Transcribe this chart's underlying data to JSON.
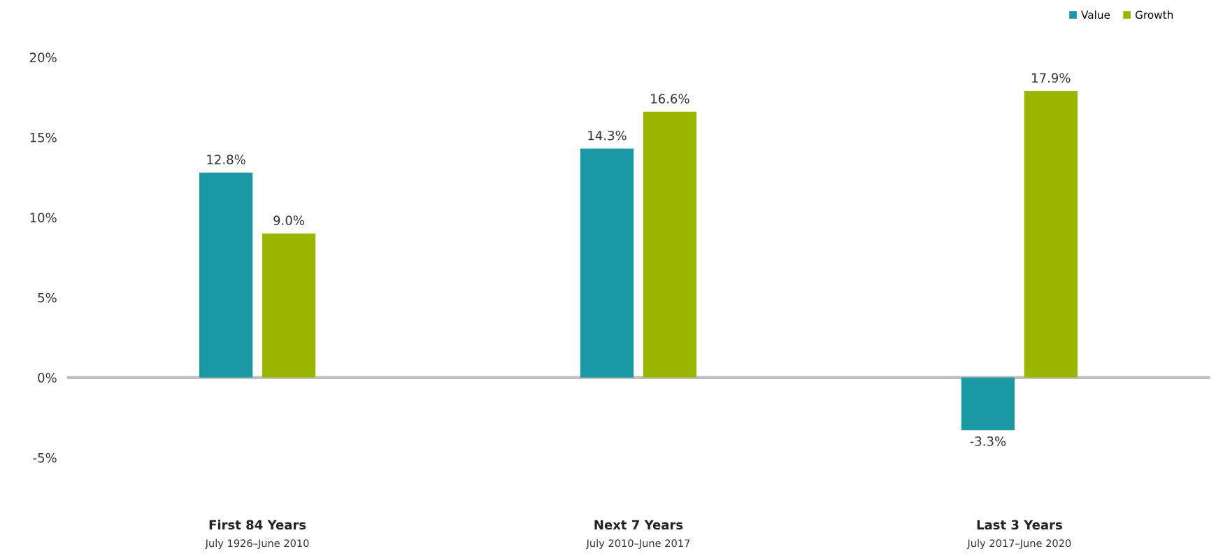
{
  "chart_data": {
    "type": "bar",
    "categories": [
      "First 84 Years\nJuly 1926–June 2010",
      "Next 7 Years\nJuly 2010–June 2017",
      "Last 3 Years\nJuly 2017–June 2020"
    ],
    "series": [
      {
        "name": "Value",
        "color": "#1a98a3",
        "values": [
          12.8,
          14.3,
          -3.3
        ],
        "value_labels": [
          "12.8%",
          "14.3%",
          "-3.3%"
        ]
      },
      {
        "name": "Growth",
        "color": "#9bb600",
        "values": [
          9.0,
          16.6,
          17.9
        ],
        "value_labels": [
          "9.0%",
          "16.6%",
          "17.9%"
        ]
      }
    ],
    "ylim": [
      -5,
      20
    ],
    "yticks": [
      {
        "value": -5,
        "label": "-5%"
      },
      {
        "value": 0,
        "label": "0%"
      },
      {
        "value": 5,
        "label": "5%"
      },
      {
        "value": 10,
        "label": "10%"
      },
      {
        "value": 15,
        "label": "15%"
      },
      {
        "value": 20,
        "label": "20%"
      }
    ],
    "ref_lines": [
      {
        "axis": "y",
        "value": 0,
        "color": "#bfbfbf"
      }
    ],
    "grid": false,
    "legend": "top right"
  }
}
